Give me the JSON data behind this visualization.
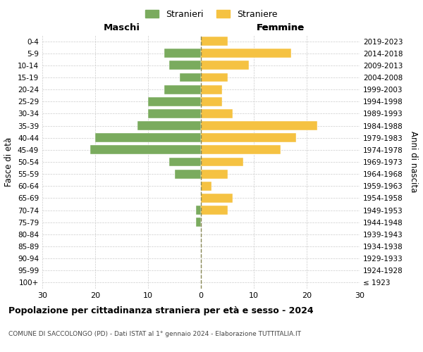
{
  "age_groups": [
    "100+",
    "95-99",
    "90-94",
    "85-89",
    "80-84",
    "75-79",
    "70-74",
    "65-69",
    "60-64",
    "55-59",
    "50-54",
    "45-49",
    "40-44",
    "35-39",
    "30-34",
    "25-29",
    "20-24",
    "15-19",
    "10-14",
    "5-9",
    "0-4"
  ],
  "birth_years": [
    "≤ 1923",
    "1924-1928",
    "1929-1933",
    "1934-1938",
    "1939-1943",
    "1944-1948",
    "1949-1953",
    "1954-1958",
    "1959-1963",
    "1964-1968",
    "1969-1973",
    "1974-1978",
    "1979-1983",
    "1984-1988",
    "1989-1993",
    "1994-1998",
    "1999-2003",
    "2004-2008",
    "2009-2013",
    "2014-2018",
    "2019-2023"
  ],
  "maschi": [
    0,
    0,
    0,
    0,
    0,
    1,
    1,
    0,
    0,
    5,
    6,
    21,
    20,
    12,
    10,
    10,
    7,
    4,
    6,
    7,
    0
  ],
  "femmine": [
    0,
    0,
    0,
    0,
    0,
    0,
    5,
    6,
    2,
    5,
    8,
    15,
    18,
    22,
    6,
    4,
    4,
    5,
    9,
    17,
    5
  ],
  "maschi_color": "#7aab5e",
  "femmine_color": "#f5c242",
  "background_color": "#ffffff",
  "grid_color": "#cccccc",
  "title": "Popolazione per cittadinanza straniera per età e sesso - 2024",
  "subtitle": "COMUNE DI SACCOLONGO (PD) - Dati ISTAT al 1° gennaio 2024 - Elaborazione TUTTITALIA.IT",
  "xlabel_left": "Maschi",
  "xlabel_right": "Femmine",
  "ylabel_left": "Fasce di età",
  "ylabel_right": "Anni di nascita",
  "legend_maschi": "Stranieri",
  "legend_femmine": "Straniere",
  "xlim": 30,
  "dashed_line_color": "#888855"
}
